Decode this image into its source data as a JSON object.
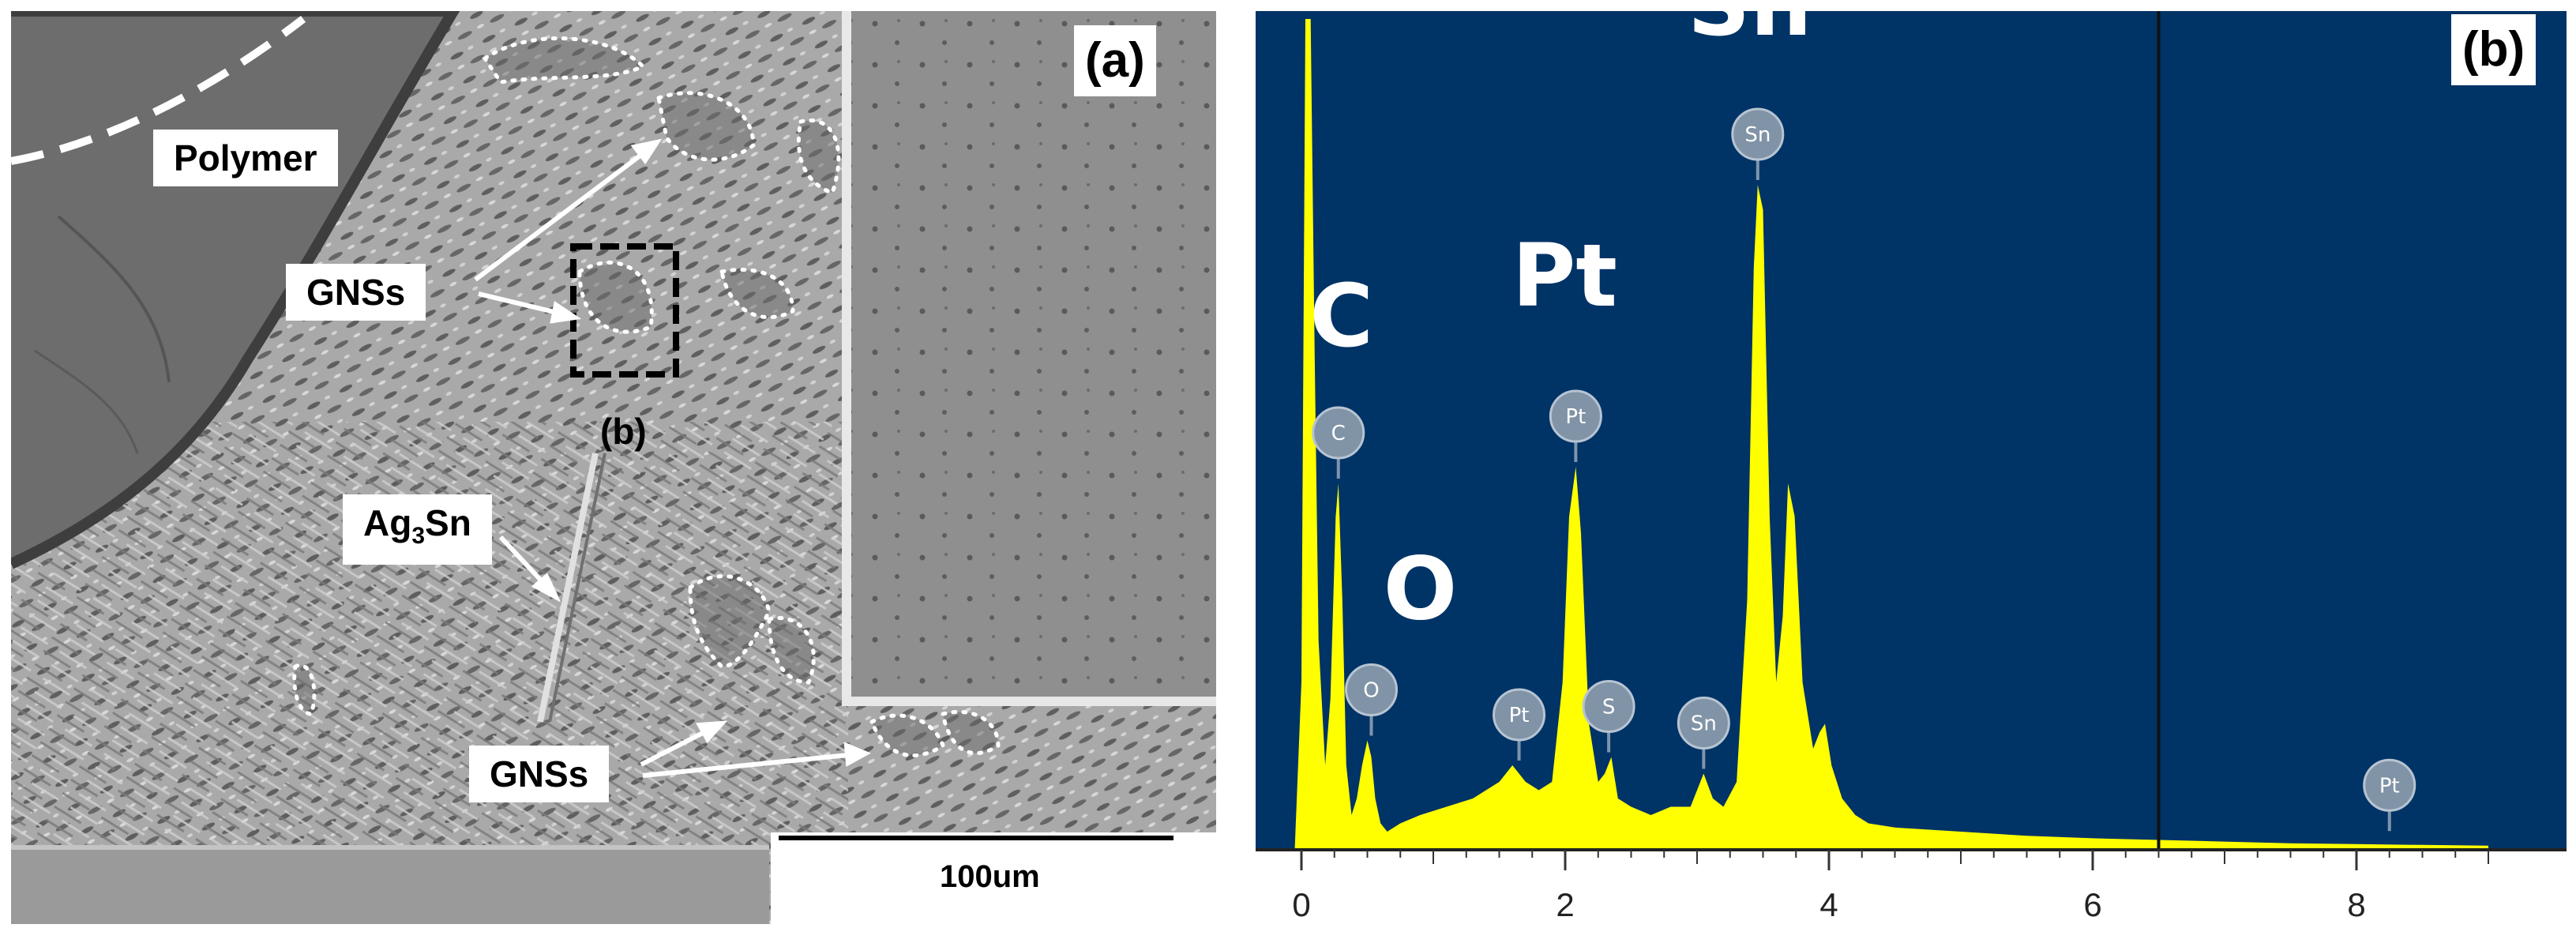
{
  "panel_a": {
    "tag": "(a)",
    "labels": {
      "polymer": "Polymer",
      "gns_top": "GNSs",
      "inset_marker": "(b)",
      "ag3sn_prefix": "Ag",
      "ag3sn_sub": "3",
      "ag3sn_suffix": "Sn",
      "gns_bottom": "GNSs"
    },
    "scale_bar": {
      "text": "100um"
    }
  },
  "panel_b": {
    "tag": "(b)",
    "background": "#003366",
    "trace_color": "#ffff00"
  },
  "chart_data": {
    "type": "area",
    "title": "",
    "xlabel": "",
    "ylabel": "",
    "xlim": [
      -0.15,
      9.1
    ],
    "ylim": [
      0,
      100
    ],
    "x_ticks": [
      "0",
      "2",
      "4",
      "6",
      "8"
    ],
    "cursor_x": 6.5,
    "series": [
      {
        "x": [
          -0.05,
          0.0,
          0.03,
          0.07,
          0.1,
          0.13,
          0.18,
          0.22,
          0.26,
          0.28,
          0.31,
          0.34,
          0.38,
          0.42,
          0.46,
          0.5,
          0.53,
          0.56,
          0.6,
          0.65,
          0.75,
          0.9,
          1.1,
          1.3,
          1.5,
          1.6,
          1.7,
          1.8,
          1.9,
          1.98,
          2.03,
          2.08,
          2.12,
          2.18,
          2.25,
          2.3,
          2.35,
          2.4,
          2.5,
          2.65,
          2.8,
          2.95,
          3.05,
          3.12,
          3.2,
          3.3,
          3.38,
          3.43,
          3.46,
          3.5,
          3.55,
          3.6,
          3.65,
          3.69,
          3.74,
          3.8,
          3.88,
          3.93,
          3.97,
          4.02,
          4.1,
          4.2,
          4.3,
          4.5,
          5.0,
          5.5,
          6.0,
          6.5,
          7.0,
          7.5,
          8.0,
          8.5,
          9.0
        ],
        "y": [
          0,
          20,
          100,
          100,
          60,
          25,
          10,
          18,
          40,
          44,
          30,
          10,
          4,
          6,
          10,
          13,
          11,
          6,
          3,
          2,
          3,
          4,
          5,
          6,
          8,
          10,
          8,
          7,
          8,
          20,
          40,
          46,
          38,
          15,
          8,
          9,
          11,
          6,
          5,
          4,
          5,
          5,
          9,
          6,
          5,
          8,
          30,
          70,
          80,
          77,
          40,
          20,
          28,
          44,
          40,
          20,
          12,
          14,
          15,
          10,
          6,
          4,
          3,
          2.5,
          2,
          1.5,
          1.2,
          1,
          0.8,
          0.6,
          0.5,
          0.4,
          0.3
        ]
      }
    ],
    "peak_labels": [
      {
        "symbol": "C",
        "chip": "C",
        "x": 0.28,
        "y": 44,
        "size": "large"
      },
      {
        "symbol": "O",
        "chip": "O",
        "x": 0.53,
        "y": 13,
        "size": "large"
      },
      {
        "symbol": "Pt",
        "chip": "Pt",
        "x": 2.08,
        "y": 46,
        "size": "large"
      },
      {
        "symbol": "Sn",
        "chip": "Sn",
        "x": 3.46,
        "y": 80,
        "size": "large"
      },
      {
        "chip": "Pt",
        "x": 1.65,
        "y": 10
      },
      {
        "chip": "S",
        "x": 2.33,
        "y": 11
      },
      {
        "chip": "Sn",
        "x": 3.05,
        "y": 9
      },
      {
        "chip": "Pt",
        "x": 8.25,
        "y": 1.5
      }
    ]
  }
}
